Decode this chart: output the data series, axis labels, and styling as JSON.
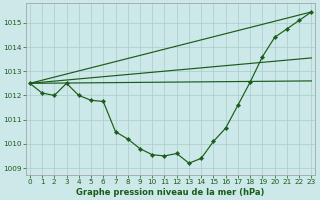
{
  "xlabel": "Graphe pression niveau de la mer (hPa)",
  "background_color": "#cce8e8",
  "grid_color": "#aacccc",
  "line_color": "#1a5c1a",
  "x_ticks": [
    0,
    1,
    2,
    3,
    4,
    5,
    6,
    7,
    8,
    9,
    10,
    11,
    12,
    13,
    14,
    15,
    16,
    17,
    18,
    19,
    20,
    21,
    22,
    23
  ],
  "ylim": [
    1008.7,
    1015.8
  ],
  "xlim": [
    -0.3,
    23.3
  ],
  "yticks": [
    1009,
    1010,
    1011,
    1012,
    1013,
    1014,
    1015
  ],
  "main_line": [
    1012.5,
    1012.1,
    1012.0,
    1012.5,
    1012.0,
    1011.8,
    1011.75,
    1010.5,
    1010.2,
    1009.8,
    1009.55,
    1009.5,
    1009.6,
    1009.2,
    1009.4,
    1010.1,
    1010.65,
    1011.6,
    1012.55,
    1013.6,
    1014.4,
    1014.75,
    1015.1,
    1015.45
  ],
  "straight_lines": [
    {
      "x": [
        0,
        23
      ],
      "y": [
        1012.5,
        1012.6
      ]
    },
    {
      "x": [
        0,
        23
      ],
      "y": [
        1012.5,
        1013.55
      ]
    },
    {
      "x": [
        0,
        23
      ],
      "y": [
        1012.5,
        1015.45
      ]
    }
  ],
  "xlabel_fontsize": 6.0,
  "tick_fontsize": 5.2,
  "linewidth": 0.85,
  "markersize": 2.2
}
